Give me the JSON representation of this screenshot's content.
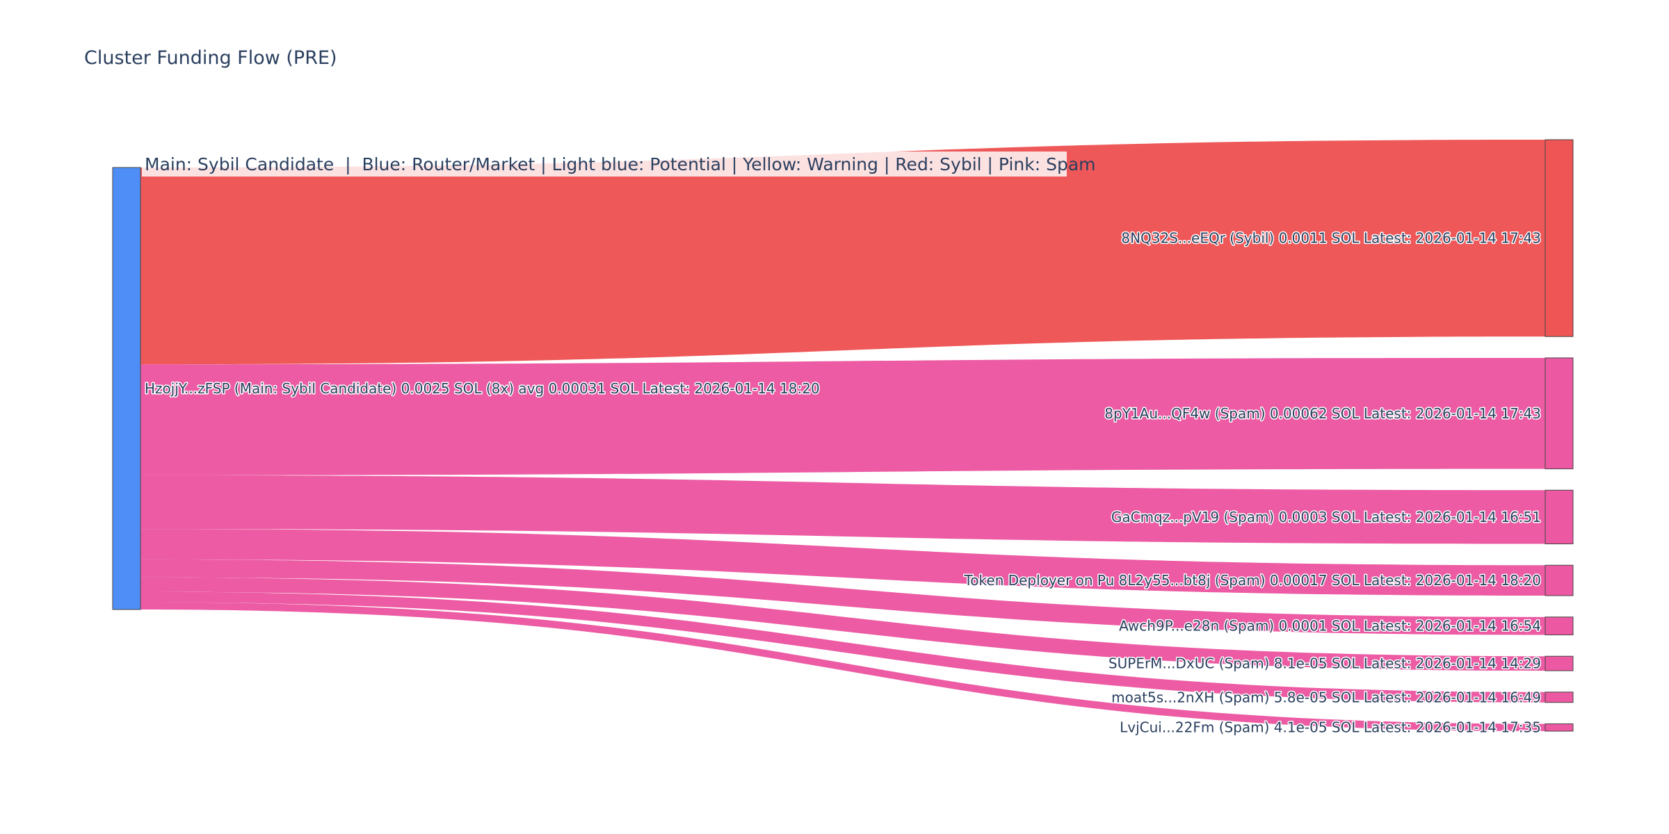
{
  "chart_data": {
    "type": "sankey",
    "title": "Cluster Funding Flow (PRE)",
    "legend_annotation": "Main: Sybil Candidate  |  Blue: Router/Market | Light blue: Potential | Yellow: Warning | Red: Sybil | Pink: Spam",
    "legend_placement": "top-left",
    "colors": {
      "main": "#4f8ef7",
      "sybil": "#ef5555",
      "spam": "#ec58a1",
      "node_border": "#444444",
      "legend_bg": "#ffffff"
    },
    "source": {
      "name": "HzojjY...zFSP (Main: Sybil Candidate) 0.0025 SOL (8x) avg 0.00031 SOL Latest: 2026-01-14 18:20",
      "category": "main"
    },
    "targets": [
      {
        "name": "8NQ32S...eEQr (Sybil) 0.0011 SOL Latest: 2026-01-14 17:43",
        "value": 0.0011,
        "category": "sybil"
      },
      {
        "name": "8pY1Au...QF4w (Spam) 0.00062 SOL Latest: 2026-01-14 17:43",
        "value": 0.00062,
        "category": "spam"
      },
      {
        "name": "GaCmqz...pV19 (Spam) 0.0003 SOL Latest: 2026-01-14 16:51",
        "value": 0.0003,
        "category": "spam"
      },
      {
        "name": "Token Deployer on Pu 8L2y55...bt8j (Spam) 0.00017 SOL Latest: 2026-01-14 18:20",
        "value": 0.00017,
        "category": "spam"
      },
      {
        "name": "Awch9P...e28n (Spam) 0.0001 SOL Latest: 2026-01-14 16:54",
        "value": 0.0001,
        "category": "spam"
      },
      {
        "name": "SUPErM...DxUC (Spam) 8.1e-05 SOL Latest: 2026-01-14 14:29",
        "value": 8.1e-05,
        "category": "spam"
      },
      {
        "name": "moat5s...2nXH (Spam) 5.8e-05 SOL Latest: 2026-01-14 16:49",
        "value": 5.8e-05,
        "category": "spam"
      },
      {
        "name": "LvjCui...22Fm (Spam) 4.1e-05 SOL Latest: 2026-01-14 17:35",
        "value": 4.1e-05,
        "category": "spam"
      }
    ]
  }
}
